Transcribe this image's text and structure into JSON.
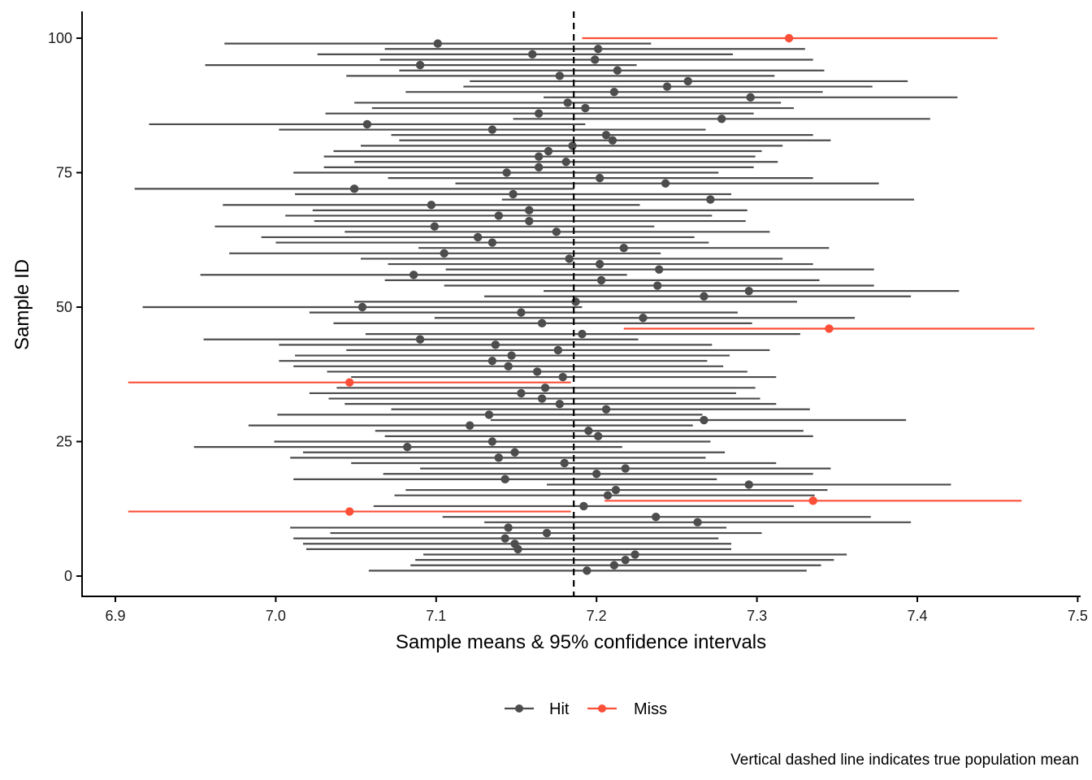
{
  "chart_data": {
    "type": "scatter",
    "subtype": "confidence-interval-plot",
    "xlabel": "Sample means & 95% confidence intervals",
    "ylabel": "Sample ID",
    "caption": "Vertical dashed line indicates true population mean",
    "xlim": [
      6.88,
      7.5
    ],
    "ylim": [
      -4,
      105
    ],
    "x_ticks": [
      "6.9",
      "7.0",
      "7.1",
      "7.2",
      "7.3",
      "7.4",
      "7.5"
    ],
    "y_ticks": [
      "0",
      "25",
      "50",
      "75",
      "100"
    ],
    "true_mean": 7.1858,
    "grid": false,
    "legend_position": "bottom",
    "legend": [
      {
        "label": "Hit",
        "color": "#4D4D4D"
      },
      {
        "label": "Miss",
        "color": "#FB4F37"
      }
    ],
    "columns": [
      "id",
      "mean",
      "lower",
      "upper",
      "status"
    ],
    "intervals": [
      [
        1,
        7.194,
        7.058,
        7.331,
        "Hit"
      ],
      [
        2,
        7.211,
        7.084,
        7.34,
        "Hit"
      ],
      [
        3,
        7.218,
        7.087,
        7.348,
        "Hit"
      ],
      [
        4,
        7.224,
        7.092,
        7.356,
        "Hit"
      ],
      [
        5,
        7.151,
        7.019,
        7.284,
        "Hit"
      ],
      [
        6,
        7.149,
        7.017,
        7.284,
        "Hit"
      ],
      [
        7,
        7.143,
        7.011,
        7.276,
        "Hit"
      ],
      [
        8,
        7.169,
        7.034,
        7.303,
        "Hit"
      ],
      [
        9,
        7.145,
        7.009,
        7.281,
        "Hit"
      ],
      [
        10,
        7.263,
        7.13,
        7.396,
        "Hit"
      ],
      [
        11,
        7.237,
        7.104,
        7.371,
        "Hit"
      ],
      [
        12,
        7.046,
        6.908,
        7.184,
        "Miss"
      ],
      [
        13,
        7.192,
        7.061,
        7.323,
        "Hit"
      ],
      [
        14,
        7.335,
        7.205,
        7.465,
        "Miss"
      ],
      [
        15,
        7.207,
        7.074,
        7.336,
        "Hit"
      ],
      [
        16,
        7.212,
        7.081,
        7.344,
        "Hit"
      ],
      [
        17,
        7.295,
        7.169,
        7.421,
        "Hit"
      ],
      [
        18,
        7.143,
        7.011,
        7.275,
        "Hit"
      ],
      [
        19,
        7.2,
        7.067,
        7.335,
        "Hit"
      ],
      [
        20,
        7.218,
        7.09,
        7.346,
        "Hit"
      ],
      [
        21,
        7.18,
        7.047,
        7.312,
        "Hit"
      ],
      [
        22,
        7.139,
        7.009,
        7.268,
        "Hit"
      ],
      [
        23,
        7.149,
        7.017,
        7.28,
        "Hit"
      ],
      [
        24,
        7.082,
        6.949,
        7.216,
        "Hit"
      ],
      [
        25,
        7.135,
        6.999,
        7.271,
        "Hit"
      ],
      [
        26,
        7.201,
        7.068,
        7.335,
        "Hit"
      ],
      [
        27,
        7.195,
        7.062,
        7.329,
        "Hit"
      ],
      [
        28,
        7.121,
        6.983,
        7.26,
        "Hit"
      ],
      [
        29,
        7.267,
        7.134,
        7.393,
        "Hit"
      ],
      [
        30,
        7.133,
        7.001,
        7.266,
        "Hit"
      ],
      [
        31,
        7.206,
        7.072,
        7.333,
        "Hit"
      ],
      [
        32,
        7.177,
        7.043,
        7.312,
        "Hit"
      ],
      [
        33,
        7.166,
        7.033,
        7.302,
        "Hit"
      ],
      [
        34,
        7.153,
        7.021,
        7.287,
        "Hit"
      ],
      [
        35,
        7.168,
        7.038,
        7.299,
        "Hit"
      ],
      [
        36,
        7.046,
        6.908,
        7.184,
        "Miss"
      ],
      [
        37,
        7.179,
        7.047,
        7.312,
        "Hit"
      ],
      [
        38,
        7.163,
        7.032,
        7.294,
        "Hit"
      ],
      [
        39,
        7.145,
        7.011,
        7.279,
        "Hit"
      ],
      [
        40,
        7.135,
        7.002,
        7.269,
        "Hit"
      ],
      [
        41,
        7.147,
        7.012,
        7.283,
        "Hit"
      ],
      [
        42,
        7.176,
        7.044,
        7.308,
        "Hit"
      ],
      [
        43,
        7.137,
        7.002,
        7.272,
        "Hit"
      ],
      [
        44,
        7.09,
        6.955,
        7.226,
        "Hit"
      ],
      [
        45,
        7.191,
        7.056,
        7.327,
        "Hit"
      ],
      [
        46,
        7.345,
        7.217,
        7.473,
        "Miss"
      ],
      [
        47,
        7.166,
        7.036,
        7.297,
        "Hit"
      ],
      [
        48,
        7.229,
        7.099,
        7.361,
        "Hit"
      ],
      [
        49,
        7.153,
        7.021,
        7.288,
        "Hit"
      ],
      [
        50,
        7.054,
        6.917,
        7.191,
        "Hit"
      ],
      [
        51,
        7.187,
        7.049,
        7.325,
        "Hit"
      ],
      [
        52,
        7.267,
        7.13,
        7.396,
        "Hit"
      ],
      [
        53,
        7.295,
        7.167,
        7.426,
        "Hit"
      ],
      [
        54,
        7.238,
        7.105,
        7.373,
        "Hit"
      ],
      [
        55,
        7.203,
        7.068,
        7.339,
        "Hit"
      ],
      [
        56,
        7.086,
        6.953,
        7.219,
        "Hit"
      ],
      [
        57,
        7.239,
        7.106,
        7.373,
        "Hit"
      ],
      [
        58,
        7.202,
        7.07,
        7.335,
        "Hit"
      ],
      [
        59,
        7.183,
        7.053,
        7.316,
        "Hit"
      ],
      [
        60,
        7.105,
        6.971,
        7.24,
        "Hit"
      ],
      [
        61,
        7.217,
        7.089,
        7.345,
        "Hit"
      ],
      [
        62,
        7.135,
        7.0,
        7.27,
        "Hit"
      ],
      [
        63,
        7.126,
        6.991,
        7.261,
        "Hit"
      ],
      [
        64,
        7.175,
        7.043,
        7.308,
        "Hit"
      ],
      [
        65,
        7.099,
        6.962,
        7.236,
        "Hit"
      ],
      [
        66,
        7.158,
        7.024,
        7.293,
        "Hit"
      ],
      [
        67,
        7.139,
        7.006,
        7.272,
        "Hit"
      ],
      [
        68,
        7.158,
        7.023,
        7.294,
        "Hit"
      ],
      [
        69,
        7.097,
        6.967,
        7.227,
        "Hit"
      ],
      [
        70,
        7.271,
        7.141,
        7.398,
        "Hit"
      ],
      [
        71,
        7.148,
        7.012,
        7.284,
        "Hit"
      ],
      [
        72,
        7.049,
        6.912,
        7.186,
        "Hit"
      ],
      [
        73,
        7.243,
        7.112,
        7.376,
        "Hit"
      ],
      [
        74,
        7.202,
        7.07,
        7.335,
        "Hit"
      ],
      [
        75,
        7.144,
        7.011,
        7.276,
        "Hit"
      ],
      [
        76,
        7.164,
        7.03,
        7.298,
        "Hit"
      ],
      [
        77,
        7.181,
        7.049,
        7.313,
        "Hit"
      ],
      [
        78,
        7.164,
        7.03,
        7.299,
        "Hit"
      ],
      [
        79,
        7.17,
        7.036,
        7.303,
        "Hit"
      ],
      [
        80,
        7.185,
        7.053,
        7.316,
        "Hit"
      ],
      [
        81,
        7.21,
        7.077,
        7.346,
        "Hit"
      ],
      [
        82,
        7.206,
        7.072,
        7.335,
        "Hit"
      ],
      [
        83,
        7.135,
        7.002,
        7.268,
        "Hit"
      ],
      [
        84,
        7.057,
        6.921,
        7.193,
        "Hit"
      ],
      [
        85,
        7.278,
        7.148,
        7.408,
        "Hit"
      ],
      [
        86,
        7.164,
        7.031,
        7.298,
        "Hit"
      ],
      [
        87,
        7.193,
        7.06,
        7.323,
        "Hit"
      ],
      [
        88,
        7.182,
        7.049,
        7.315,
        "Hit"
      ],
      [
        89,
        7.296,
        7.167,
        7.425,
        "Hit"
      ],
      [
        90,
        7.211,
        7.081,
        7.341,
        "Hit"
      ],
      [
        91,
        7.244,
        7.117,
        7.372,
        "Hit"
      ],
      [
        92,
        7.257,
        7.121,
        7.394,
        "Hit"
      ],
      [
        93,
        7.177,
        7.044,
        7.311,
        "Hit"
      ],
      [
        94,
        7.213,
        7.077,
        7.342,
        "Hit"
      ],
      [
        95,
        7.09,
        6.956,
        7.225,
        "Hit"
      ],
      [
        96,
        7.199,
        7.065,
        7.335,
        "Hit"
      ],
      [
        97,
        7.16,
        7.026,
        7.285,
        "Hit"
      ],
      [
        98,
        7.201,
        7.068,
        7.33,
        "Hit"
      ],
      [
        99,
        7.101,
        6.968,
        7.234,
        "Hit"
      ],
      [
        100,
        7.32,
        7.191,
        7.45,
        "Miss"
      ]
    ]
  }
}
